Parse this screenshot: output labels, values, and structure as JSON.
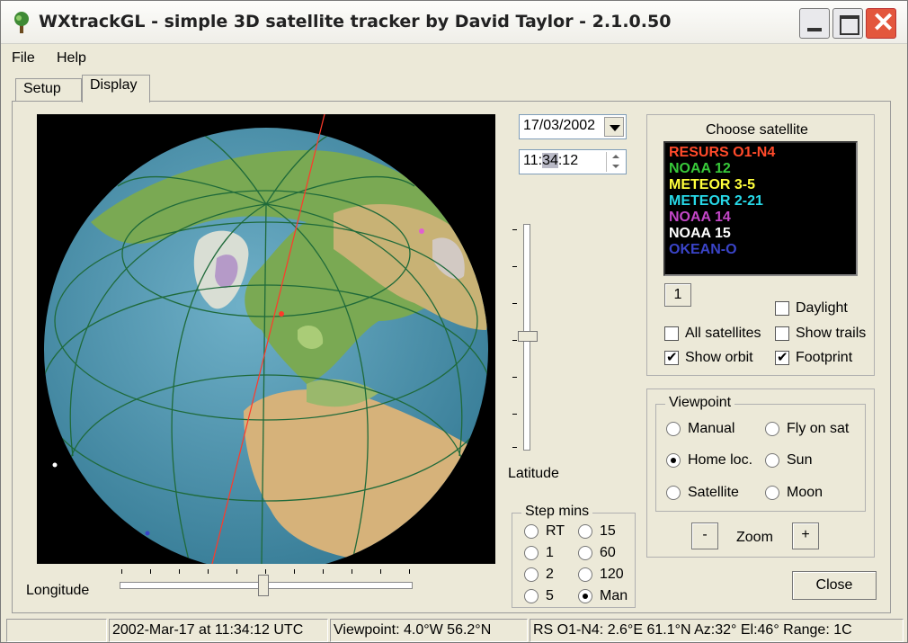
{
  "window": {
    "title": "WXtrackGL - simple 3D satellite tracker by David Taylor - 2.1.0.50"
  },
  "menu": {
    "file": "File",
    "help": "Help"
  },
  "tabs": {
    "setup": "Setup",
    "display": "Display"
  },
  "datetime": {
    "date": "17/03/2002",
    "time_hh": "11:",
    "time_mm": "34",
    "time_ss": ":12"
  },
  "latitude": {
    "label": "Latitude"
  },
  "longitude": {
    "label": "Longitude"
  },
  "choose_satellite": {
    "title": "Choose satellite",
    "satellites": [
      {
        "name": "RESURS O1-N4",
        "color": "#ff4a2a"
      },
      {
        "name": "NOAA 12",
        "color": "#38c93a"
      },
      {
        "name": "METEOR 3-5",
        "color": "#ffff3c"
      },
      {
        "name": "METEOR 2-21",
        "color": "#27d9e8"
      },
      {
        "name": "NOAA 14",
        "color": "#c447c8"
      },
      {
        "name": "NOAA 15",
        "color": "#ffffff"
      },
      {
        "name": "OKEAN-O",
        "color": "#3a44c8"
      }
    ],
    "button_label": "1",
    "daylight": "Daylight",
    "all_satellites": "All satellites",
    "show_trails": "Show trails",
    "show_orbit": "Show orbit",
    "footprint": "Footprint",
    "checked": {
      "daylight": false,
      "all_satellites": false,
      "show_trails": false,
      "show_orbit": true,
      "footprint": true
    }
  },
  "viewpoint": {
    "title": "Viewpoint",
    "manual": "Manual",
    "fly_on_sat": "Fly on sat",
    "home_loc": "Home loc.",
    "sun": "Sun",
    "satellite": "Satellite",
    "moon": "Moon",
    "selected": "home_loc",
    "zoom_label": "Zoom",
    "zoom_minus": "-",
    "zoom_plus": "+"
  },
  "step_mins": {
    "title": "Step mins",
    "options": [
      "RT",
      "15",
      "1",
      "60",
      "2",
      "120",
      "5",
      "Man"
    ],
    "selected": "Man"
  },
  "close_button": "Close",
  "status": {
    "pane1": "",
    "pane2": "2002-Mar-17 at 11:34:12 UTC",
    "pane3": "Viewpoint: 4.0°W  56.2°N",
    "pane4": "RS O1-N4: 2.6°E  61.1°N  Az:32°  El:46°  Range: 1C"
  }
}
